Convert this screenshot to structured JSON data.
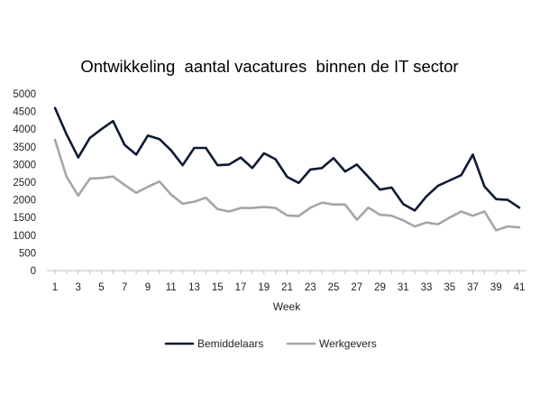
{
  "chart_data": {
    "type": "line",
    "title": "Ontwikkeling  aantal vacatures  binnen de IT sector",
    "xlabel": "Week",
    "ylabel": "",
    "ylim": [
      0,
      5000
    ],
    "yticks": [
      0,
      500,
      1000,
      1500,
      2000,
      2500,
      3000,
      3500,
      4000,
      4500,
      5000
    ],
    "x": [
      1,
      2,
      3,
      4,
      5,
      6,
      7,
      8,
      9,
      10,
      11,
      12,
      13,
      14,
      15,
      16,
      17,
      18,
      19,
      20,
      21,
      22,
      23,
      24,
      25,
      26,
      27,
      28,
      29,
      30,
      31,
      32,
      33,
      34,
      35,
      36,
      37,
      38,
      39,
      40,
      41
    ],
    "xtick_labels": [
      1,
      3,
      5,
      7,
      9,
      11,
      13,
      15,
      17,
      19,
      21,
      23,
      25,
      27,
      29,
      31,
      33,
      35,
      37,
      39,
      41
    ],
    "grid": false,
    "legend_position": "bottom",
    "series": [
      {
        "name": "Bemiddelaars",
        "color": "#0f1a33",
        "values": [
          4600,
          3850,
          3200,
          3750,
          4000,
          4230,
          3550,
          3280,
          3820,
          3720,
          3400,
          2980,
          3470,
          3470,
          2980,
          3000,
          3200,
          2900,
          3320,
          3150,
          2650,
          2480,
          2860,
          2900,
          3180,
          2800,
          3000,
          2650,
          2290,
          2350,
          1880,
          1700,
          2100,
          2400,
          2550,
          2700,
          3280,
          2380,
          2020,
          2000,
          1780
        ]
      },
      {
        "name": "Werkgevers",
        "color": "#a6a6a6",
        "values": [
          3700,
          2650,
          2120,
          2600,
          2620,
          2660,
          2420,
          2200,
          2370,
          2520,
          2150,
          1890,
          1950,
          2060,
          1740,
          1670,
          1770,
          1770,
          1800,
          1770,
          1560,
          1540,
          1780,
          1920,
          1870,
          1870,
          1440,
          1780,
          1580,
          1550,
          1420,
          1250,
          1360,
          1310,
          1500,
          1670,
          1550,
          1670,
          1140,
          1250,
          1220
        ]
      }
    ]
  }
}
